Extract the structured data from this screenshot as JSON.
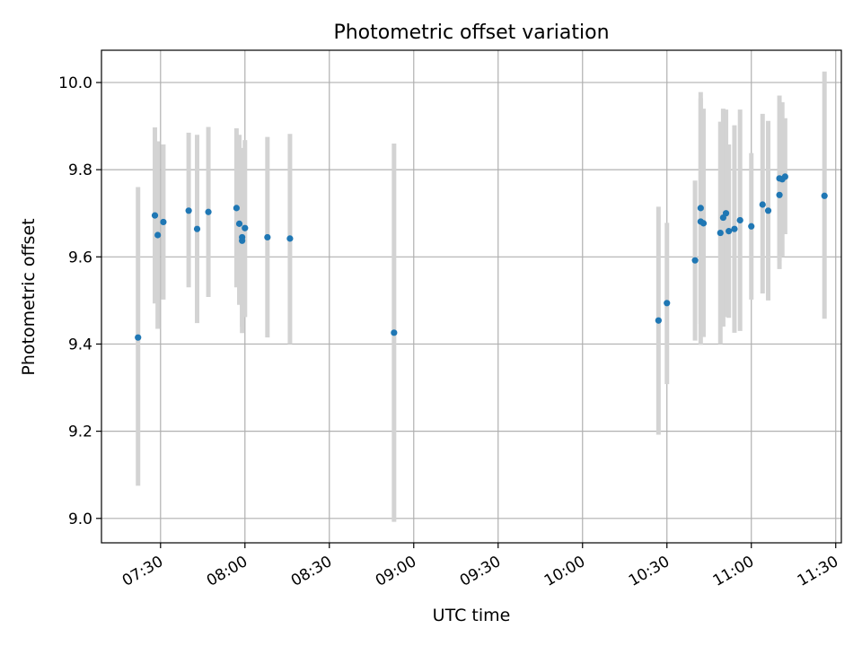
{
  "chart_data": {
    "type": "scatter",
    "title": "Photometric offset variation",
    "xlabel": "UTC time",
    "ylabel": "Photometric offset",
    "x_tick_labels": [
      "07:30",
      "08:00",
      "08:30",
      "09:00",
      "09:30",
      "10:00",
      "10:30",
      "11:00",
      "11:30"
    ],
    "x_tick_values": [
      "07:30",
      "08:00",
      "08:30",
      "09:00",
      "09:30",
      "10:00",
      "10:30",
      "11:00",
      "11:30"
    ],
    "xlim": [
      "07:09",
      "11:32"
    ],
    "y_tick_labels": [
      "9.0",
      "9.2",
      "9.4",
      "9.6",
      "9.8",
      "10.0"
    ],
    "y_tick_values": [
      9.0,
      9.2,
      9.4,
      9.6,
      9.8,
      10.0
    ],
    "ylim": [
      8.944,
      10.074
    ],
    "grid": true,
    "point_color": "#1f77b4",
    "errorbar_color": "#d3d3d3",
    "points": [
      {
        "x": "07:22",
        "y": 9.415,
        "lo": 9.075,
        "hi": 9.76
      },
      {
        "x": "07:28",
        "y": 9.695,
        "lo": 9.493,
        "hi": 9.897
      },
      {
        "x": "07:29",
        "y": 9.65,
        "lo": 9.435,
        "hi": 9.865
      },
      {
        "x": "07:31",
        "y": 9.68,
        "lo": 9.502,
        "hi": 9.858
      },
      {
        "x": "07:40",
        "y": 9.706,
        "lo": 9.53,
        "hi": 9.885
      },
      {
        "x": "07:43",
        "y": 9.664,
        "lo": 9.448,
        "hi": 9.88
      },
      {
        "x": "07:47",
        "y": 9.703,
        "lo": 9.508,
        "hi": 9.898
      },
      {
        "x": "07:57",
        "y": 9.712,
        "lo": 9.53,
        "hi": 9.895
      },
      {
        "x": "07:58",
        "y": 9.676,
        "lo": 9.49,
        "hi": 9.88
      },
      {
        "x": "07:59",
        "y": 9.637,
        "lo": 9.425,
        "hi": 9.848
      },
      {
        "x": "07:59",
        "y": 9.645,
        "lo": 9.44,
        "hi": 9.85
      },
      {
        "x": "08:00",
        "y": 9.666,
        "lo": 9.462,
        "hi": 9.868
      },
      {
        "x": "08:08",
        "y": 9.645,
        "lo": 9.415,
        "hi": 9.875
      },
      {
        "x": "08:16",
        "y": 9.642,
        "lo": 9.4,
        "hi": 9.882
      },
      {
        "x": "08:53",
        "y": 9.426,
        "lo": 8.992,
        "hi": 9.86
      },
      {
        "x": "10:27",
        "y": 9.454,
        "lo": 9.192,
        "hi": 9.715
      },
      {
        "x": "10:30",
        "y": 9.494,
        "lo": 9.308,
        "hi": 9.678
      },
      {
        "x": "10:40",
        "y": 9.592,
        "lo": 9.408,
        "hi": 9.775
      },
      {
        "x": "10:42",
        "y": 9.712,
        "lo": 9.446,
        "hi": 9.978
      },
      {
        "x": "10:42",
        "y": 9.681,
        "lo": 9.398,
        "hi": 9.964
      },
      {
        "x": "10:43",
        "y": 9.677,
        "lo": 9.416,
        "hi": 9.94
      },
      {
        "x": "10:49",
        "y": 9.655,
        "lo": 9.4,
        "hi": 9.91
      },
      {
        "x": "10:50",
        "y": 9.69,
        "lo": 9.44,
        "hi": 9.94
      },
      {
        "x": "10:51",
        "y": 9.7,
        "lo": 9.462,
        "hi": 9.938
      },
      {
        "x": "10:52",
        "y": 9.659,
        "lo": 9.46,
        "hi": 9.858
      },
      {
        "x": "10:54",
        "y": 9.664,
        "lo": 9.426,
        "hi": 9.902
      },
      {
        "x": "10:56",
        "y": 9.684,
        "lo": 9.43,
        "hi": 9.938
      },
      {
        "x": "11:00",
        "y": 9.67,
        "lo": 9.502,
        "hi": 9.838
      },
      {
        "x": "11:04",
        "y": 9.72,
        "lo": 9.516,
        "hi": 9.928
      },
      {
        "x": "11:06",
        "y": 9.706,
        "lo": 9.5,
        "hi": 9.912
      },
      {
        "x": "11:10",
        "y": 9.78,
        "lo": 9.59,
        "hi": 9.97
      },
      {
        "x": "11:10",
        "y": 9.742,
        "lo": 9.572,
        "hi": 9.912
      },
      {
        "x": "11:11",
        "y": 9.778,
        "lo": 9.6,
        "hi": 9.955
      },
      {
        "x": "11:12",
        "y": 9.784,
        "lo": 9.652,
        "hi": 9.918
      },
      {
        "x": "11:26",
        "y": 9.74,
        "lo": 9.458,
        "hi": 10.025
      }
    ]
  }
}
